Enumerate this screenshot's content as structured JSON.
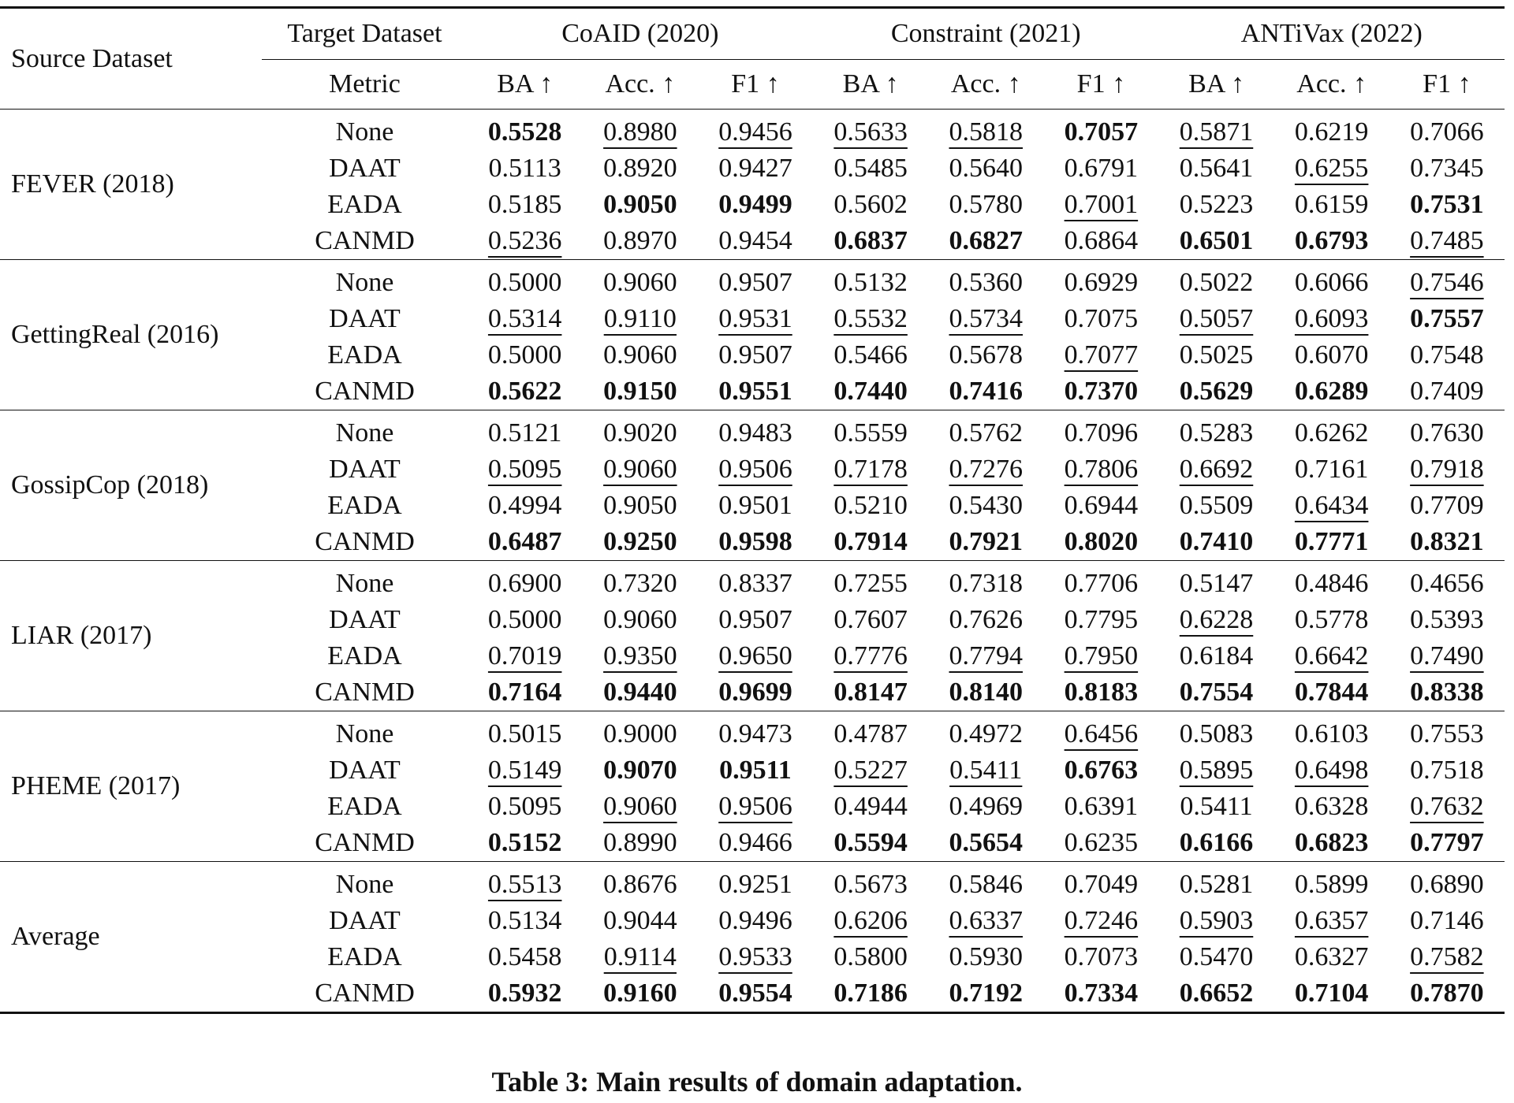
{
  "header": {
    "source": "Source Dataset",
    "target": "Target Dataset",
    "metric": "Metric",
    "datasets": [
      "CoAID (2020)",
      "Constraint (2021)",
      "ANTiVax (2022)"
    ],
    "metrics": [
      "BA ↑",
      "Acc. ↑",
      "F1 ↑",
      "BA ↑",
      "Acc. ↑",
      "F1 ↑",
      "BA ↑",
      "Acc. ↑",
      "F1 ↑"
    ]
  },
  "groups": [
    {
      "source": "FEVER (2018)",
      "rows": [
        {
          "method": "None",
          "values": [
            "0.5528",
            "0.8980",
            "0.9456",
            "0.5633",
            "0.5818",
            "0.7057",
            "0.5871",
            "0.6219",
            "0.7066"
          ],
          "bold": [
            0,
            5
          ],
          "underline": [
            1,
            2,
            3,
            4,
            6
          ]
        },
        {
          "method": "DAAT",
          "values": [
            "0.5113",
            "0.8920",
            "0.9427",
            "0.5485",
            "0.5640",
            "0.6791",
            "0.5641",
            "0.6255",
            "0.7345"
          ],
          "bold": [],
          "underline": [
            7
          ]
        },
        {
          "method": "EADA",
          "values": [
            "0.5185",
            "0.9050",
            "0.9499",
            "0.5602",
            "0.5780",
            "0.7001",
            "0.5223",
            "0.6159",
            "0.7531"
          ],
          "bold": [
            1,
            2,
            8
          ],
          "underline": [
            5
          ]
        },
        {
          "method": "CANMD",
          "values": [
            "0.5236",
            "0.8970",
            "0.9454",
            "0.6837",
            "0.6827",
            "0.6864",
            "0.6501",
            "0.6793",
            "0.7485"
          ],
          "bold": [
            3,
            4,
            6,
            7
          ],
          "underline": [
            0,
            8
          ]
        }
      ]
    },
    {
      "source": "GettingReal (2016)",
      "rows": [
        {
          "method": "None",
          "values": [
            "0.5000",
            "0.9060",
            "0.9507",
            "0.5132",
            "0.5360",
            "0.6929",
            "0.5022",
            "0.6066",
            "0.7546"
          ],
          "bold": [],
          "underline": [
            8
          ]
        },
        {
          "method": "DAAT",
          "values": [
            "0.5314",
            "0.9110",
            "0.9531",
            "0.5532",
            "0.5734",
            "0.7075",
            "0.5057",
            "0.6093",
            "0.7557"
          ],
          "bold": [
            8
          ],
          "underline": [
            0,
            1,
            2,
            3,
            4,
            6,
            7
          ]
        },
        {
          "method": "EADA",
          "values": [
            "0.5000",
            "0.9060",
            "0.9507",
            "0.5466",
            "0.5678",
            "0.7077",
            "0.5025",
            "0.6070",
            "0.7548"
          ],
          "bold": [],
          "underline": [
            5
          ]
        },
        {
          "method": "CANMD",
          "values": [
            "0.5622",
            "0.9150",
            "0.9551",
            "0.7440",
            "0.7416",
            "0.7370",
            "0.5629",
            "0.6289",
            "0.7409"
          ],
          "bold": [
            0,
            1,
            2,
            3,
            4,
            5,
            6,
            7
          ],
          "underline": []
        }
      ]
    },
    {
      "source": "GossipCop (2018)",
      "rows": [
        {
          "method": "None",
          "values": [
            "0.5121",
            "0.9020",
            "0.9483",
            "0.5559",
            "0.5762",
            "0.7096",
            "0.5283",
            "0.6262",
            "0.7630"
          ],
          "bold": [],
          "underline": []
        },
        {
          "method": "DAAT",
          "values": [
            "0.5095",
            "0.9060",
            "0.9506",
            "0.7178",
            "0.7276",
            "0.7806",
            "0.6692",
            "0.7161",
            "0.7918"
          ],
          "bold": [],
          "underline": [
            0,
            1,
            2,
            3,
            4,
            5,
            6,
            8
          ]
        },
        {
          "method": "EADA",
          "values": [
            "0.4994",
            "0.9050",
            "0.9501",
            "0.5210",
            "0.5430",
            "0.6944",
            "0.5509",
            "0.6434",
            "0.7709"
          ],
          "bold": [],
          "underline": [
            7
          ]
        },
        {
          "method": "CANMD",
          "values": [
            "0.6487",
            "0.9250",
            "0.9598",
            "0.7914",
            "0.7921",
            "0.8020",
            "0.7410",
            "0.7771",
            "0.8321"
          ],
          "bold": [
            0,
            1,
            2,
            3,
            4,
            5,
            6,
            7,
            8
          ],
          "underline": []
        }
      ]
    },
    {
      "source": "LIAR (2017)",
      "rows": [
        {
          "method": "None",
          "values": [
            "0.6900",
            "0.7320",
            "0.8337",
            "0.7255",
            "0.7318",
            "0.7706",
            "0.5147",
            "0.4846",
            "0.4656"
          ],
          "bold": [],
          "underline": []
        },
        {
          "method": "DAAT",
          "values": [
            "0.5000",
            "0.9060",
            "0.9507",
            "0.7607",
            "0.7626",
            "0.7795",
            "0.6228",
            "0.5778",
            "0.5393"
          ],
          "bold": [],
          "underline": [
            6
          ]
        },
        {
          "method": "EADA",
          "values": [
            "0.7019",
            "0.9350",
            "0.9650",
            "0.7776",
            "0.7794",
            "0.7950",
            "0.6184",
            "0.6642",
            "0.7490"
          ],
          "bold": [],
          "underline": [
            0,
            1,
            2,
            3,
            4,
            5,
            7,
            8
          ]
        },
        {
          "method": "CANMD",
          "values": [
            "0.7164",
            "0.9440",
            "0.9699",
            "0.8147",
            "0.8140",
            "0.8183",
            "0.7554",
            "0.7844",
            "0.8338"
          ],
          "bold": [
            0,
            1,
            2,
            3,
            4,
            5,
            6,
            7,
            8
          ],
          "underline": []
        }
      ]
    },
    {
      "source": "PHEME (2017)",
      "rows": [
        {
          "method": "None",
          "values": [
            "0.5015",
            "0.9000",
            "0.9473",
            "0.4787",
            "0.4972",
            "0.6456",
            "0.5083",
            "0.6103",
            "0.7553"
          ],
          "bold": [],
          "underline": [
            5
          ]
        },
        {
          "method": "DAAT",
          "values": [
            "0.5149",
            "0.9070",
            "0.9511",
            "0.5227",
            "0.5411",
            "0.6763",
            "0.5895",
            "0.6498",
            "0.7518"
          ],
          "bold": [
            1,
            2,
            5
          ],
          "underline": [
            0,
            3,
            4,
            6,
            7
          ]
        },
        {
          "method": "EADA",
          "values": [
            "0.5095",
            "0.9060",
            "0.9506",
            "0.4944",
            "0.4969",
            "0.6391",
            "0.5411",
            "0.6328",
            "0.7632"
          ],
          "bold": [],
          "underline": [
            1,
            2,
            8
          ]
        },
        {
          "method": "CANMD",
          "values": [
            "0.5152",
            "0.8990",
            "0.9466",
            "0.5594",
            "0.5654",
            "0.6235",
            "0.6166",
            "0.6823",
            "0.7797"
          ],
          "bold": [
            0,
            3,
            4,
            6,
            7,
            8
          ],
          "underline": []
        }
      ]
    },
    {
      "source": "Average",
      "rows": [
        {
          "method": "None",
          "values": [
            "0.5513",
            "0.8676",
            "0.9251",
            "0.5673",
            "0.5846",
            "0.7049",
            "0.5281",
            "0.5899",
            "0.6890"
          ],
          "bold": [],
          "underline": [
            0
          ]
        },
        {
          "method": "DAAT",
          "values": [
            "0.5134",
            "0.9044",
            "0.9496",
            "0.6206",
            "0.6337",
            "0.7246",
            "0.5903",
            "0.6357",
            "0.7146"
          ],
          "bold": [],
          "underline": [
            3,
            4,
            5,
            6,
            7
          ]
        },
        {
          "method": "EADA",
          "values": [
            "0.5458",
            "0.9114",
            "0.9533",
            "0.5800",
            "0.5930",
            "0.7073",
            "0.5470",
            "0.6327",
            "0.7582"
          ],
          "bold": [],
          "underline": [
            1,
            2,
            8
          ]
        },
        {
          "method": "CANMD",
          "values": [
            "0.5932",
            "0.9160",
            "0.9554",
            "0.7186",
            "0.7192",
            "0.7334",
            "0.6652",
            "0.7104",
            "0.7870"
          ],
          "bold": [
            0,
            1,
            2,
            3,
            4,
            5,
            6,
            7,
            8
          ],
          "underline": []
        }
      ]
    }
  ],
  "caption": "Table 3: Main results of domain adaptation."
}
